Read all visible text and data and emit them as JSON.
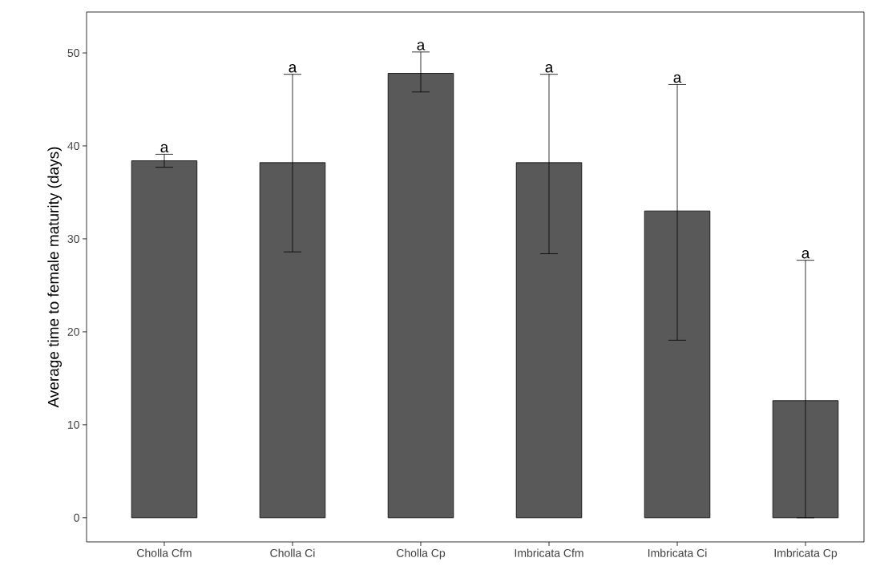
{
  "chart_data": {
    "type": "bar",
    "ylabel": "Average time to female maturity (days)",
    "categories": [
      "Cholla Cfm",
      "Cholla Ci",
      "Cholla Cp",
      "Imbricata Cfm",
      "Imbricata Ci",
      "Imbricata Cp"
    ],
    "values": [
      38.4,
      38.2,
      47.8,
      38.2,
      33.0,
      12.6
    ],
    "errors": [
      [
        37.7,
        39.1
      ],
      [
        28.6,
        47.7
      ],
      [
        45.8,
        50.1
      ],
      [
        28.4,
        47.7
      ],
      [
        19.1,
        46.6
      ],
      [
        0,
        27.7
      ]
    ],
    "color": "#595959",
    "ylim": [
      -2.6,
      54.4
    ],
    "yticks": [
      0,
      10,
      20,
      30,
      40,
      50
    ],
    "annotations": [
      {
        "text": "a",
        "x": "Cholla Cfm",
        "y": 39.1
      },
      {
        "text": "a",
        "x": "Cholla Ci",
        "y": 47.7
      },
      {
        "text": "a",
        "x": "Cholla Cp",
        "y": 50.1
      },
      {
        "text": "a",
        "x": "Imbricata Cfm",
        "y": 47.7
      },
      {
        "text": "a",
        "x": "Imbricata Ci",
        "y": 46.6
      },
      {
        "text": "a",
        "x": "Imbricata Cp",
        "y": 27.7
      }
    ],
    "grid": false
  }
}
